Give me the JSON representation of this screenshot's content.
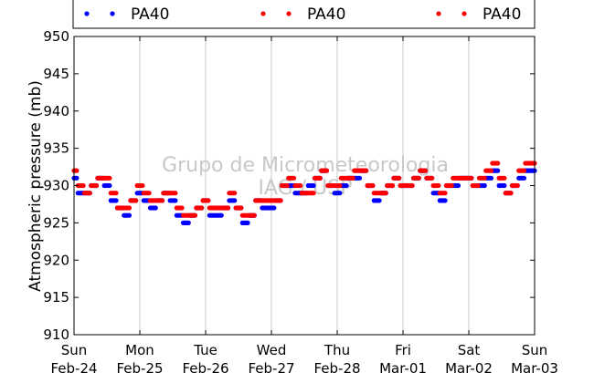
{
  "chart_data": {
    "type": "scatter",
    "ylabel": "Atmospheric pressure (mb)",
    "xlabel": "",
    "ylim": [
      910,
      950
    ],
    "xlim": [
      0,
      7
    ],
    "yticks": [
      910,
      915,
      920,
      925,
      930,
      935,
      940,
      945,
      950
    ],
    "xticks": [
      {
        "day": "Sun",
        "date": "Feb-24"
      },
      {
        "day": "Mon",
        "date": "Feb-25"
      },
      {
        "day": "Tue",
        "date": "Feb-26"
      },
      {
        "day": "Wed",
        "date": "Feb-27"
      },
      {
        "day": "Thu",
        "date": "Feb-28"
      },
      {
        "day": "Fri",
        "date": "Mar-01"
      },
      {
        "day": "Sat",
        "date": "Mar-02"
      },
      {
        "day": "Sun",
        "date": "Mar-03"
      }
    ],
    "grid": "vertical",
    "legend_position": "top",
    "watermark": [
      "Grupo de Micrometeorologia",
      "IAG / USP"
    ],
    "series": [
      {
        "name": "PA40",
        "color": "#0000ff",
        "x": [
          0.0,
          0.1,
          0.2,
          0.3,
          0.4,
          0.5,
          0.6,
          0.7,
          0.8,
          0.9,
          1.0,
          1.1,
          1.2,
          1.3,
          1.4,
          1.5,
          1.6,
          1.7,
          1.8,
          1.9,
          2.0,
          2.1,
          2.2,
          2.3,
          2.4,
          2.5,
          2.6,
          2.7,
          2.8,
          2.9,
          3.0,
          3.1,
          3.2,
          3.3,
          3.4,
          3.5,
          3.6,
          3.7,
          3.8,
          3.9,
          4.0,
          4.1,
          4.2,
          4.3,
          4.4,
          4.5,
          4.6,
          4.7,
          4.8,
          4.9,
          5.0,
          5.1,
          5.2,
          5.3,
          5.4,
          5.5,
          5.6,
          5.7,
          5.8,
          5.9,
          6.0,
          6.1,
          6.2,
          6.3,
          6.4,
          6.5,
          6.6,
          6.7,
          6.8,
          6.9,
          7.0
        ],
        "y": [
          931,
          929,
          929,
          930,
          931,
          930,
          928,
          927,
          926,
          928,
          929,
          928,
          927,
          928,
          929,
          928,
          926,
          925,
          926,
          927,
          928,
          926,
          926,
          927,
          928,
          927,
          925,
          926,
          928,
          927,
          927,
          928,
          930,
          930,
          929,
          929,
          930,
          931,
          932,
          930,
          929,
          930,
          931,
          931,
          932,
          930,
          928,
          929,
          930,
          931,
          930,
          930,
          931,
          932,
          931,
          929,
          928,
          930,
          930,
          931,
          931,
          930,
          930,
          931,
          932,
          930,
          929,
          930,
          931,
          932,
          932
        ]
      },
      {
        "name": "PA40",
        "color": "#ff0000",
        "x": [
          0.0,
          0.1,
          0.2,
          0.3,
          0.4,
          0.5,
          0.6,
          0.7,
          0.8,
          0.9,
          1.0,
          1.1,
          1.2,
          1.3,
          1.4,
          1.5,
          1.6,
          1.7,
          1.8,
          1.9,
          2.0,
          2.1,
          2.2,
          2.3,
          2.4,
          2.5,
          2.6,
          2.7,
          2.8,
          2.9,
          3.0,
          3.1,
          3.2,
          3.3,
          3.4,
          3.5,
          3.6,
          3.7,
          3.8,
          3.9,
          4.0,
          4.1,
          4.2,
          4.3,
          4.4,
          4.5,
          4.6,
          4.7,
          4.8,
          4.9,
          5.0,
          5.1,
          5.2,
          5.3,
          5.4,
          5.5,
          5.6,
          5.7,
          5.8,
          5.9,
          6.0,
          6.1,
          6.2,
          6.3,
          6.4,
          6.5,
          6.6,
          6.7,
          6.8,
          6.9,
          7.0
        ],
        "y": [
          932,
          930,
          929,
          930,
          931,
          931,
          929,
          927,
          927,
          928,
          930,
          929,
          928,
          928,
          929,
          929,
          927,
          926,
          926,
          927,
          928,
          927,
          927,
          927,
          929,
          927,
          926,
          926,
          928,
          928,
          928,
          928,
          930,
          931,
          930,
          929,
          929,
          931,
          932,
          930,
          930,
          931,
          931,
          932,
          932,
          930,
          929,
          929,
          930,
          931,
          930,
          930,
          931,
          932,
          931,
          930,
          929,
          930,
          931,
          931,
          931,
          930,
          931,
          932,
          933,
          931,
          929,
          930,
          932,
          933,
          933
        ]
      },
      {
        "name": "PA40",
        "color": "#ff0000",
        "x": [],
        "y": []
      }
    ]
  }
}
